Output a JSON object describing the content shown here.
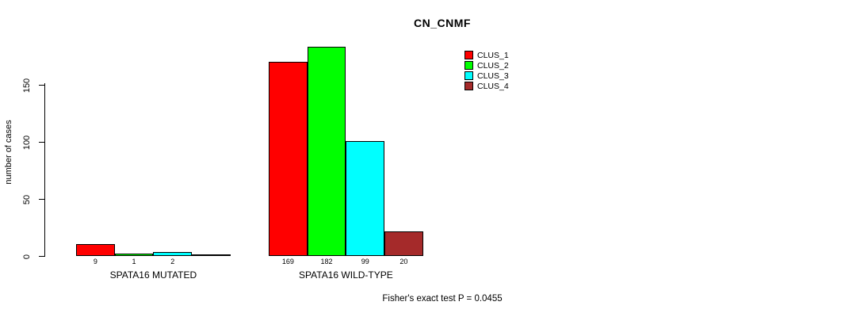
{
  "chart_data": {
    "type": "bar",
    "title": "CN_CNMF",
    "ylabel": "number of cases",
    "annotation": "Fisher's exact test P = 0.0455",
    "groups": [
      "SPATA16 MUTATED",
      "SPATA16 WILD-TYPE"
    ],
    "series": [
      {
        "name": "CLUS_1",
        "color": "#ff0000",
        "values": [
          9,
          169
        ]
      },
      {
        "name": "CLUS_2",
        "color": "#00ff00",
        "values": [
          1,
          182
        ]
      },
      {
        "name": "CLUS_3",
        "color": "#00ffff",
        "values": [
          2,
          99
        ]
      },
      {
        "name": "CLUS_4",
        "color": "#a52a2a",
        "values": [
          0,
          20
        ]
      }
    ],
    "yticks": [
      0,
      50,
      100,
      150
    ],
    "ylim": [
      0,
      150
    ],
    "bar_value_labels": {
      "shown": true,
      "hide_zero": true
    },
    "legend_position": "top-right",
    "grid": false
  }
}
